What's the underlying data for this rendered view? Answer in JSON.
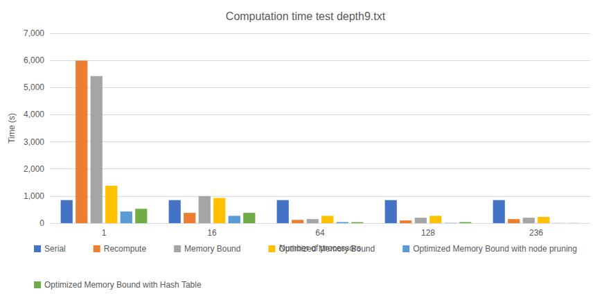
{
  "chart_data": {
    "type": "bar",
    "title": "Computation time test depth9.txt",
    "x_label": "Number of processors",
    "y_label": "Time (s)",
    "categories": [
      "1",
      "16",
      "64",
      "128",
      "236"
    ],
    "series": [
      {
        "name": "Serial",
        "color": "#4472c4",
        "values": [
          850,
          850,
          850,
          850,
          850
        ]
      },
      {
        "name": "Recompute",
        "color": "#ed7d31",
        "values": [
          5990,
          380,
          120,
          100,
          150
        ]
      },
      {
        "name": "Memory Bound",
        "color": "#a5a5a5",
        "values": [
          5420,
          1000,
          150,
          200,
          200
        ]
      },
      {
        "name": "Optimized Memory Bound",
        "color": "#ffc000",
        "values": [
          1380,
          930,
          270,
          270,
          230
        ]
      },
      {
        "name": "Optimized Memory Bound with node pruning",
        "color": "#5b9bd5",
        "values": [
          430,
          270,
          40,
          10,
          5
        ]
      },
      {
        "name": "Optimized Memory Bound with Hash Table",
        "color": "#70ad47",
        "values": [
          530,
          380,
          40,
          40,
          5
        ]
      }
    ],
    "ylim": [
      0,
      7000
    ],
    "yticks": [
      0,
      1000,
      2000,
      3000,
      4000,
      5000,
      6000,
      7000
    ],
    "grid": true,
    "legend": "bottom"
  }
}
